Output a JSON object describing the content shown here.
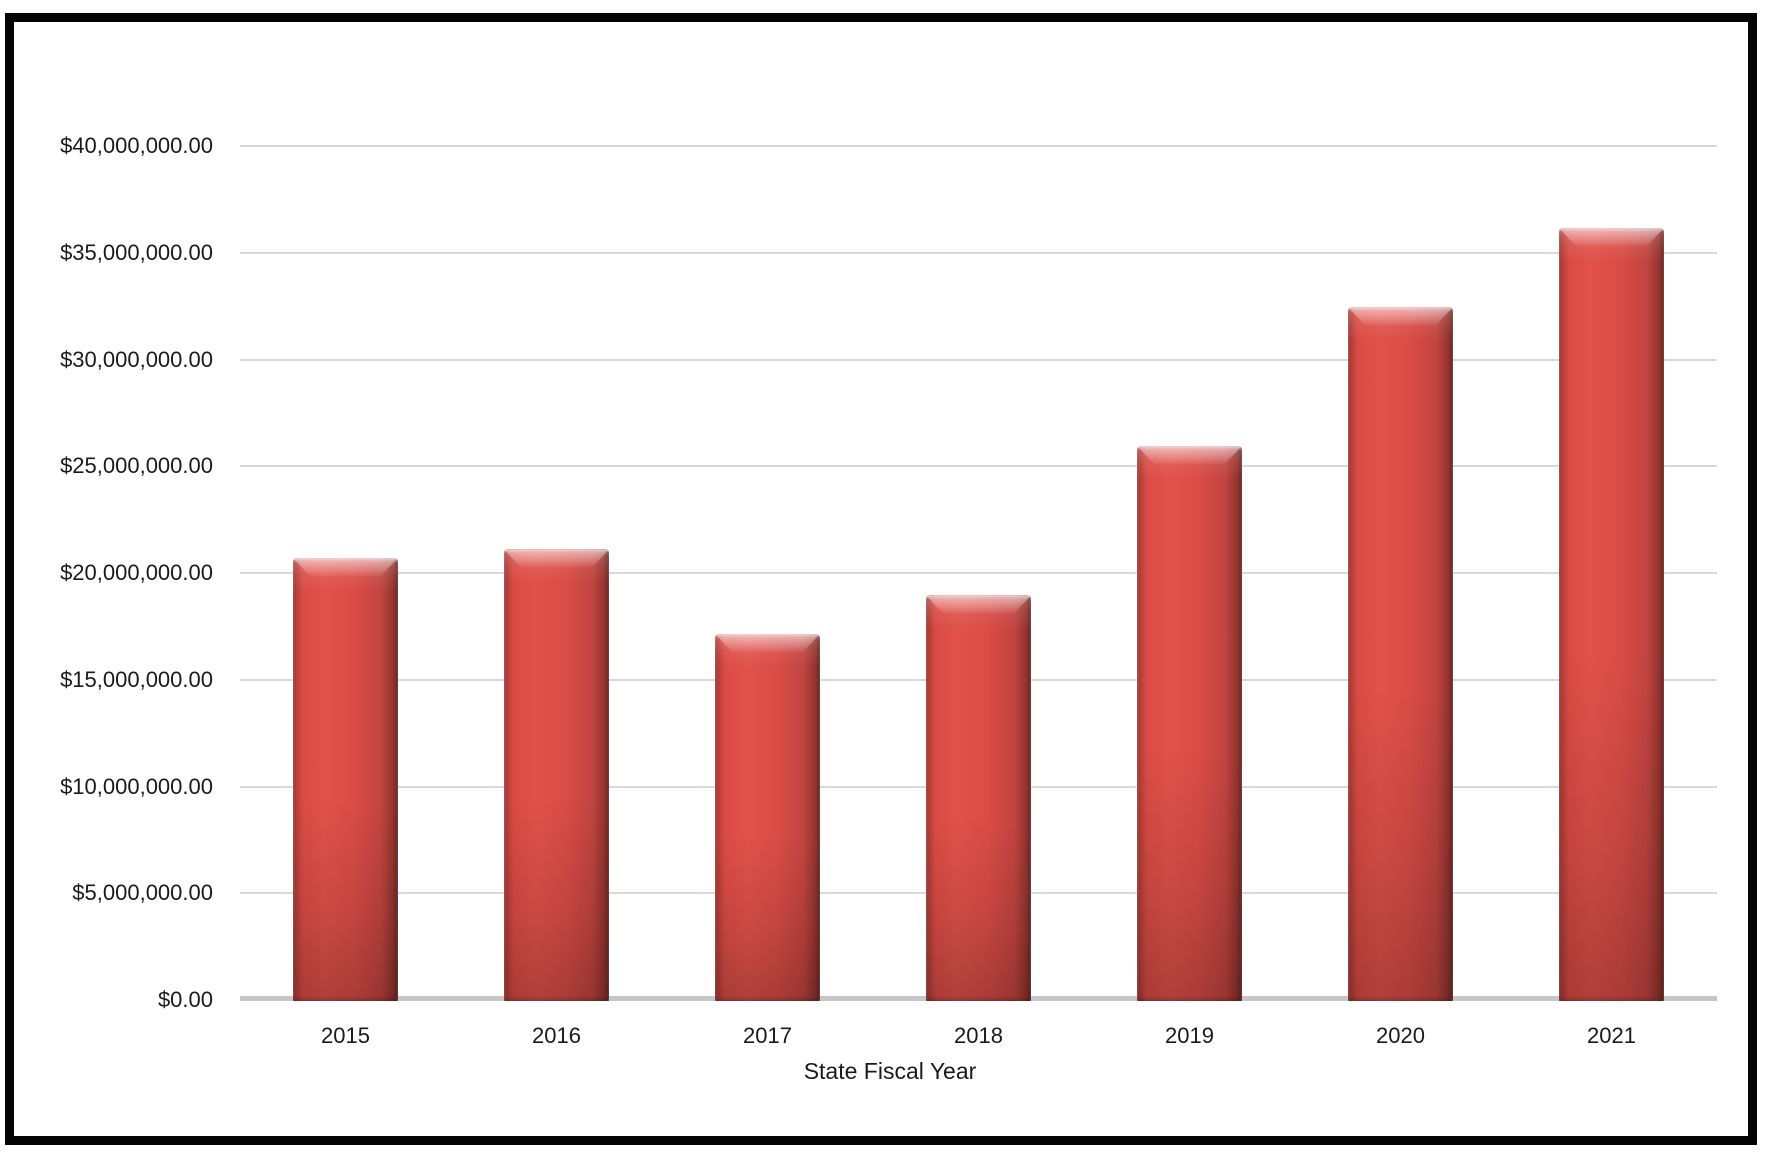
{
  "frame": {
    "border_color": "#050505",
    "background_color": "#ffffff"
  },
  "chart_data": {
    "type": "bar",
    "title": "",
    "xlabel": "State Fiscal Year",
    "ylabel": "",
    "categories": [
      "2015",
      "2016",
      "2017",
      "2018",
      "2019",
      "2020",
      "2021"
    ],
    "values": [
      20750000,
      21150000,
      17200000,
      19000000,
      26000000,
      32500000,
      36200000
    ],
    "ylim": [
      0,
      40000000
    ],
    "ytick_step": 5000000,
    "ytick_labels": [
      "$0.00",
      "$5,000,000.00",
      "$10,000,000.00",
      "$15,000,000.00",
      "$20,000,000.00",
      "$25,000,000.00",
      "$30,000,000.00",
      "$35,000,000.00",
      "$40,000,000.00"
    ],
    "grid": true,
    "legend": false,
    "gridline_color": "#d9d9d9",
    "axis_line_color": "#c6c6c6",
    "bar_color": "#d0453f",
    "bar_edge_color": "#8e322d",
    "text_color": "#1a1a1a"
  }
}
